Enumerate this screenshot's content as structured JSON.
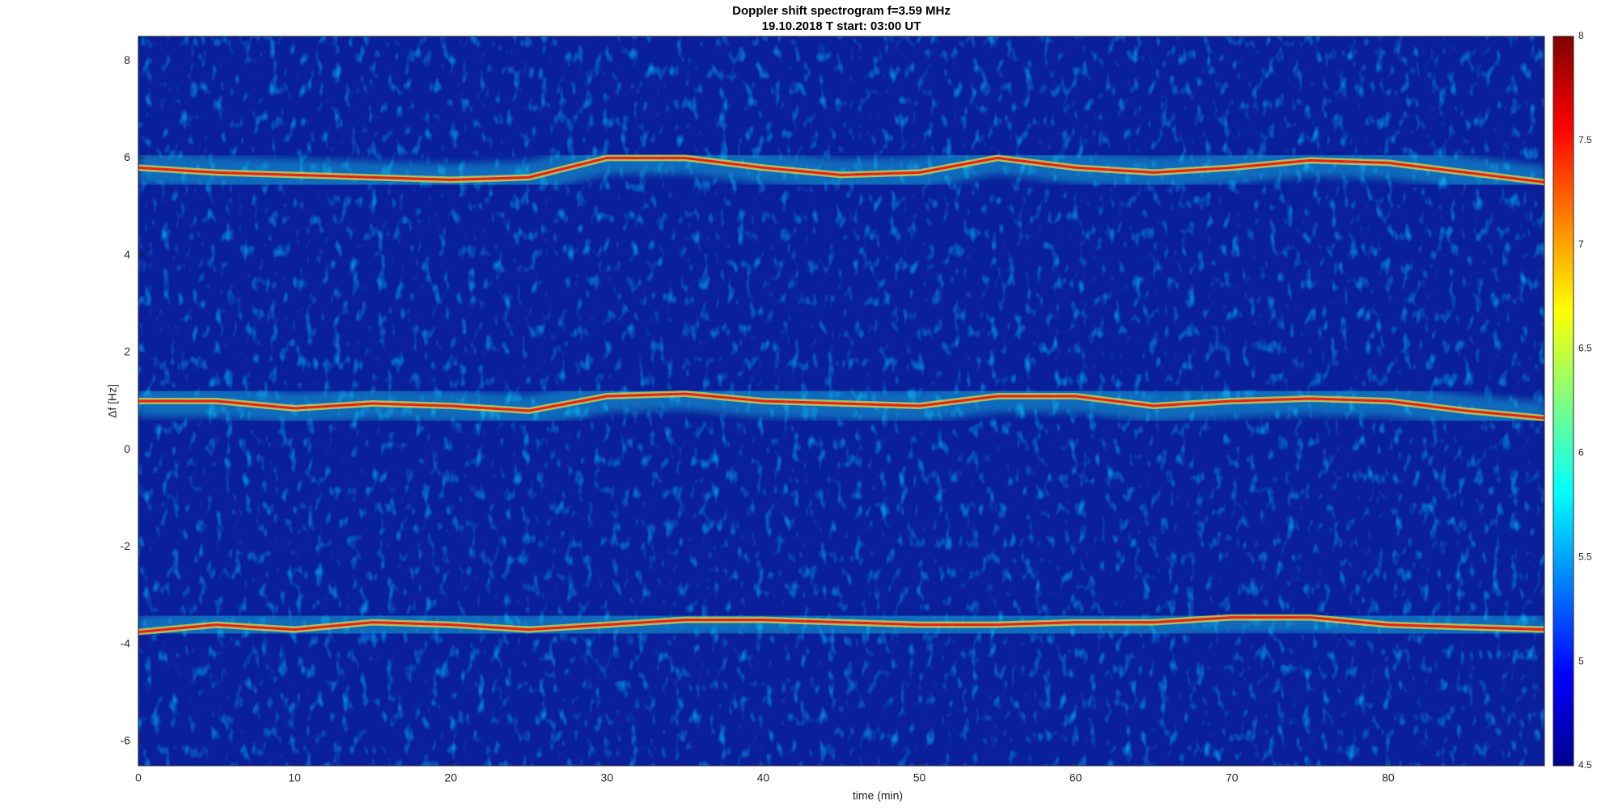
{
  "chart_data": {
    "type": "line",
    "title": "Doppler shift spectrogram f=3.59 MHz",
    "subtitle": "19.10.2018   T start: 03:00 UT",
    "x_label": "time (min)",
    "y_label": "Δf [Hz]",
    "xlim": [
      0,
      90
    ],
    "xticks": [
      0,
      10,
      20,
      30,
      40,
      50,
      60,
      70,
      80
    ],
    "ylim": [
      -6.5,
      8.5
    ],
    "yticks": [
      -6,
      -4,
      -2,
      0,
      2,
      4,
      6,
      8
    ],
    "colorbar": {
      "lim": [
        4.5,
        8
      ],
      "ticks": [
        4.5,
        5,
        5.5,
        6,
        6.5,
        7,
        7.5,
        8
      ]
    },
    "x": [
      0,
      5,
      10,
      15,
      20,
      25,
      30,
      35,
      40,
      45,
      50,
      55,
      60,
      65,
      70,
      75,
      80,
      85,
      90
    ],
    "series": [
      {
        "color": "#e8201c",
        "values": [
          5.8,
          5.7,
          5.65,
          5.6,
          5.55,
          5.6,
          6.0,
          6.0,
          5.8,
          5.65,
          5.7,
          6.0,
          5.8,
          5.7,
          5.8,
          5.95,
          5.9,
          5.7,
          5.5
        ]
      },
      {
        "color": "#e8201c",
        "values": [
          1.0,
          1.0,
          0.85,
          0.95,
          0.9,
          0.8,
          1.1,
          1.15,
          1.0,
          0.95,
          0.9,
          1.1,
          1.1,
          0.9,
          1.0,
          1.05,
          1.0,
          0.8,
          0.65
        ]
      },
      {
        "color": "#e8201c",
        "values": [
          -3.75,
          -3.6,
          -3.7,
          -3.55,
          -3.6,
          -3.7,
          -3.6,
          -3.5,
          -3.5,
          -3.55,
          -3.6,
          -3.6,
          -3.55,
          -3.55,
          -3.45,
          -3.45,
          -3.6,
          -3.65,
          -3.7
        ]
      }
    ]
  }
}
